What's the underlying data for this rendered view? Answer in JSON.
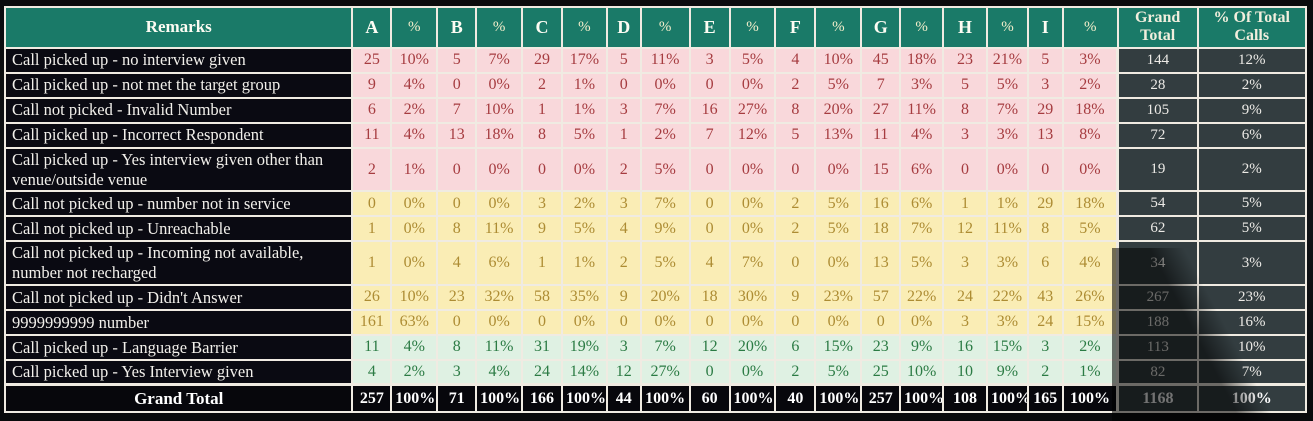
{
  "chart_data": {
    "type": "table",
    "title": "",
    "remarks_label": "Remarks",
    "percent_label": "%",
    "grand_total_label": "Grand Total",
    "pct_of_total_label": "% Of Total Calls",
    "group_columns": [
      "A",
      "B",
      "C",
      "D",
      "E",
      "F",
      "G",
      "H",
      "I"
    ],
    "columns": [
      "Remarks",
      "A",
      "%",
      "B",
      "%",
      "C",
      "%",
      "D",
      "%",
      "E",
      "%",
      "F",
      "%",
      "G",
      "%",
      "H",
      "%",
      "I",
      "%",
      "Grand Total",
      "% Of Total Calls"
    ],
    "rows": [
      {
        "remark": "Call picked up - no interview given",
        "tone": "pink",
        "values": [
          25,
          "10%",
          5,
          "7%",
          29,
          "17%",
          5,
          "11%",
          3,
          "5%",
          4,
          "10%",
          45,
          "18%",
          23,
          "21%",
          5,
          "3%"
        ],
        "grand_total": 144,
        "pct_of_total": "12%"
      },
      {
        "remark": "Call picked up - not met the target group",
        "tone": "pink",
        "values": [
          9,
          "4%",
          0,
          "0%",
          2,
          "1%",
          0,
          "0%",
          0,
          "0%",
          2,
          "5%",
          7,
          "3%",
          5,
          "5%",
          3,
          "2%"
        ],
        "grand_total": 28,
        "pct_of_total": "2%"
      },
      {
        "remark": "Call not picked - Invalid Number",
        "tone": "pink",
        "values": [
          6,
          "2%",
          7,
          "10%",
          1,
          "1%",
          3,
          "7%",
          16,
          "27%",
          8,
          "20%",
          27,
          "11%",
          8,
          "7%",
          29,
          "18%"
        ],
        "grand_total": 105,
        "pct_of_total": "9%"
      },
      {
        "remark": "Call picked up - Incorrect Respondent",
        "tone": "pink",
        "values": [
          11,
          "4%",
          13,
          "18%",
          8,
          "5%",
          1,
          "2%",
          7,
          "12%",
          5,
          "13%",
          11,
          "4%",
          3,
          "3%",
          13,
          "8%"
        ],
        "grand_total": 72,
        "pct_of_total": "6%"
      },
      {
        "remark": "Call picked up - Yes interview given other than venue/outside venue",
        "tone": "pink",
        "values": [
          2,
          "1%",
          0,
          "0%",
          0,
          "0%",
          2,
          "5%",
          0,
          "0%",
          0,
          "0%",
          15,
          "6%",
          0,
          "0%",
          0,
          "0%"
        ],
        "grand_total": 19,
        "pct_of_total": "2%"
      },
      {
        "remark": "Call not picked up - number not in service",
        "tone": "yellow",
        "values": [
          0,
          "0%",
          0,
          "0%",
          3,
          "2%",
          3,
          "7%",
          0,
          "0%",
          2,
          "5%",
          16,
          "6%",
          1,
          "1%",
          29,
          "18%"
        ],
        "grand_total": 54,
        "pct_of_total": "5%"
      },
      {
        "remark": "Call not  picked up -  Unreachable",
        "tone": "yellow",
        "values": [
          1,
          "0%",
          8,
          "11%",
          9,
          "5%",
          4,
          "9%",
          0,
          "0%",
          2,
          "5%",
          18,
          "7%",
          12,
          "11%",
          8,
          "5%"
        ],
        "grand_total": 62,
        "pct_of_total": "5%"
      },
      {
        "remark": "Call not picked up - Incoming not available, number not recharged",
        "tone": "yellow",
        "values": [
          1,
          "0%",
          4,
          "6%",
          1,
          "1%",
          2,
          "5%",
          4,
          "7%",
          0,
          "0%",
          13,
          "5%",
          3,
          "3%",
          6,
          "4%"
        ],
        "grand_total": 34,
        "pct_of_total": "3%"
      },
      {
        "remark": "Call not picked up - Didn't Answer",
        "tone": "yellow",
        "values": [
          26,
          "10%",
          23,
          "32%",
          58,
          "35%",
          9,
          "20%",
          18,
          "30%",
          9,
          "23%",
          57,
          "22%",
          24,
          "22%",
          43,
          "26%"
        ],
        "grand_total": 267,
        "pct_of_total": "23%"
      },
      {
        "remark": "9999999999 number",
        "tone": "yellow",
        "values": [
          161,
          "63%",
          0,
          "0%",
          0,
          "0%",
          0,
          "0%",
          0,
          "0%",
          0,
          "0%",
          0,
          "0%",
          3,
          "3%",
          24,
          "15%"
        ],
        "grand_total": 188,
        "pct_of_total": "16%"
      },
      {
        "remark": "Call picked up - Language Barrier",
        "tone": "green",
        "values": [
          11,
          "4%",
          8,
          "11%",
          31,
          "19%",
          3,
          "7%",
          12,
          "20%",
          6,
          "15%",
          23,
          "9%",
          16,
          "15%",
          3,
          "2%"
        ],
        "grand_total": 113,
        "pct_of_total": "10%"
      },
      {
        "remark": "Call picked up - Yes Interview given",
        "tone": "green",
        "values": [
          4,
          "2%",
          3,
          "4%",
          24,
          "14%",
          12,
          "27%",
          0,
          "0%",
          2,
          "5%",
          25,
          "10%",
          10,
          "9%",
          2,
          "1%"
        ],
        "grand_total": 82,
        "pct_of_total": "7%"
      }
    ],
    "grand_total_row": {
      "label": "Grand Total",
      "values": [
        257,
        "100%",
        71,
        "100%",
        166,
        "100%",
        44,
        "100%",
        60,
        "100%",
        40,
        "100%",
        257,
        "100%",
        108,
        "100%",
        165,
        "100%"
      ],
      "grand_total": 1168,
      "pct_of_total": "100%"
    },
    "layout_hints": {
      "grid": "white 2px lines",
      "legend": "none",
      "row_band_colors": [
        "pink",
        "yellow",
        "green"
      ]
    }
  },
  "colors": {
    "header_bg": "#1a7a68",
    "header_text": "#fdfcf3",
    "percent_header_text": "#f2edca",
    "pink_bg": "#f9d8db",
    "pink_text": "#a63c40",
    "yellow_bg": "#faedb5",
    "yellow_text": "#ad8c33",
    "green_bg": "#dff1e3",
    "green_text": "#2b7b44",
    "label_bg": "#0a0a12",
    "label_text": "#f2f0eb",
    "total_col_bg": "#333d40",
    "total_col_text": "#eceae6",
    "grand_total_row_bg": "#07070c",
    "grid_line": "#f0ebe2",
    "page_bg": "#0b0c0e"
  }
}
